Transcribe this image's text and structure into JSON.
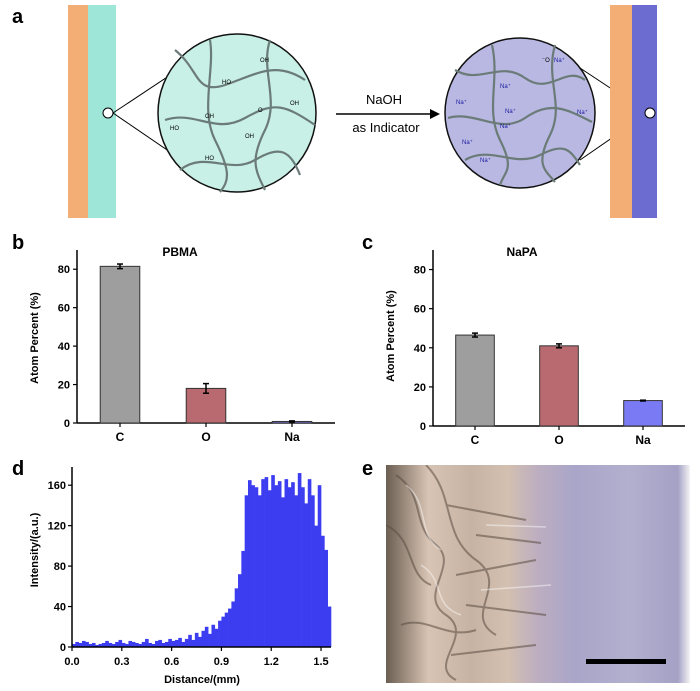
{
  "panels": {
    "a": "a",
    "b": "b",
    "c": "c",
    "d": "d",
    "e": "e"
  },
  "schematic": {
    "arrow_top": "NaOH",
    "arrow_bottom": "as Indicator",
    "acid_label": "OH",
    "acid_o": "O",
    "acid_ho": "HO",
    "salt_label": "Na⁺",
    "salt_o": "⁻O",
    "colors": {
      "film_base": "#f2ae75",
      "acid_layer": "#9ee6d8",
      "salt_layer": "#6c6cd0",
      "acid_circle": "#c8f0e6",
      "salt_circle": "#b8b8e2"
    }
  },
  "chart_data": [
    {
      "type": "bar",
      "title": "PBMA",
      "ylabel": "Atom Percent (%)",
      "categories": [
        "C",
        "O",
        "Na"
      ],
      "values": [
        81.5,
        18,
        0.8
      ],
      "errors": [
        1.2,
        2.5,
        0.3
      ],
      "colors": [
        "#9e9e9e",
        "#b86a70",
        "#7a7af5"
      ],
      "ylim": [
        0,
        90
      ],
      "yticks": [
        "0",
        "20",
        "40",
        "60",
        "80"
      ]
    },
    {
      "type": "bar",
      "title": "NaPA",
      "ylabel": "Atom Percent (%)",
      "categories": [
        "C",
        "O",
        "Na"
      ],
      "values": [
        46.5,
        41,
        13
      ],
      "errors": [
        1.0,
        1.0,
        0.2
      ],
      "colors": [
        "#9e9e9e",
        "#b86a70",
        "#7a7af5"
      ],
      "ylim": [
        0,
        90
      ],
      "yticks": [
        "0",
        "20",
        "40",
        "60",
        "80"
      ]
    },
    {
      "type": "bar",
      "ylabel": "Intensity/(a.u.)",
      "xlabel": "Distance/(mm)",
      "xlim": [
        0,
        1.56
      ],
      "ylim": [
        0,
        178
      ],
      "xticks": [
        "0.0",
        "0.3",
        "0.6",
        "0.9",
        "1.2",
        "1.5"
      ],
      "yticks": [
        "0",
        "40",
        "80",
        "120",
        "160"
      ],
      "color": "#3c3cf0",
      "x": [
        0.0,
        0.02,
        0.04,
        0.06,
        0.08,
        0.1,
        0.12,
        0.14,
        0.16,
        0.18,
        0.2,
        0.22,
        0.24,
        0.26,
        0.28,
        0.3,
        0.32,
        0.34,
        0.36,
        0.38,
        0.4,
        0.42,
        0.44,
        0.46,
        0.48,
        0.5,
        0.52,
        0.54,
        0.56,
        0.58,
        0.6,
        0.62,
        0.64,
        0.66,
        0.68,
        0.7,
        0.72,
        0.74,
        0.76,
        0.78,
        0.8,
        0.82,
        0.84,
        0.86,
        0.88,
        0.9,
        0.92,
        0.94,
        0.96,
        0.98,
        1.0,
        1.02,
        1.04,
        1.06,
        1.08,
        1.1,
        1.12,
        1.14,
        1.16,
        1.18,
        1.2,
        1.22,
        1.24,
        1.26,
        1.28,
        1.3,
        1.32,
        1.34,
        1.36,
        1.38,
        1.4,
        1.42,
        1.44,
        1.46,
        1.48,
        1.5,
        1.52,
        1.54
      ],
      "values": [
        3,
        5,
        4,
        6,
        5,
        3,
        4,
        2,
        3,
        4,
        6,
        4,
        3,
        5,
        7,
        4,
        3,
        6,
        5,
        4,
        3,
        5,
        8,
        4,
        3,
        6,
        7,
        4,
        5,
        8,
        6,
        7,
        9,
        5,
        8,
        12,
        7,
        14,
        10,
        16,
        20,
        13,
        22,
        18,
        26,
        30,
        34,
        38,
        45,
        58,
        72,
        95,
        150,
        165,
        160,
        158,
        150,
        166,
        168,
        155,
        170,
        160,
        164,
        148,
        166,
        158,
        163,
        150,
        172,
        158,
        142,
        166,
        150,
        120,
        160,
        110,
        96,
        40
      ]
    }
  ],
  "photo": {
    "scale_bar": "scale-bar",
    "colors": {
      "left": "#d8c4b4",
      "right": "#a9a5c9"
    }
  }
}
